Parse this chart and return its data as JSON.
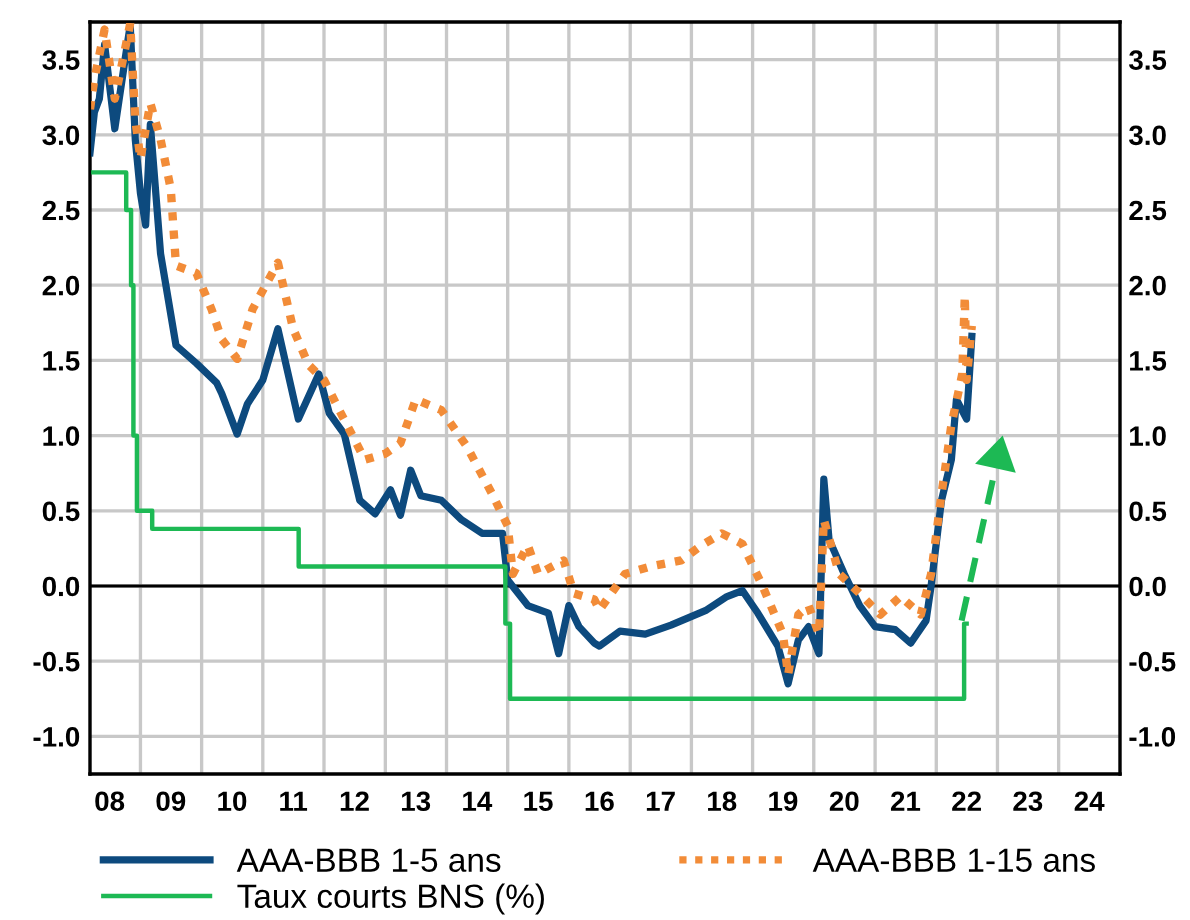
{
  "chart_data": {
    "type": "line",
    "xlim": [
      "2008-03-06",
      "2025-01-01"
    ],
    "xticks": [
      {
        "value": "2008-07-01",
        "label": "08"
      },
      {
        "value": "2009-01-01",
        "label": null
      },
      {
        "value": "2009-07-01",
        "label": "09"
      },
      {
        "value": "2010-01-01",
        "label": null
      },
      {
        "value": "2010-07-01",
        "label": "10"
      },
      {
        "value": "2011-01-01",
        "label": null
      },
      {
        "value": "2011-07-01",
        "label": "11"
      },
      {
        "value": "2012-01-01",
        "label": null
      },
      {
        "value": "2012-07-01",
        "label": "12"
      },
      {
        "value": "2013-01-01",
        "label": null
      },
      {
        "value": "2013-07-01",
        "label": "13"
      },
      {
        "value": "2014-01-01",
        "label": null
      },
      {
        "value": "2014-07-01",
        "label": "14"
      },
      {
        "value": "2015-01-01",
        "label": null
      },
      {
        "value": "2015-07-01",
        "label": "15"
      },
      {
        "value": "2016-01-01",
        "label": null
      },
      {
        "value": "2016-07-01",
        "label": "16"
      },
      {
        "value": "2017-01-01",
        "label": null
      },
      {
        "value": "2017-07-01",
        "label": "17"
      },
      {
        "value": "2018-01-01",
        "label": null
      },
      {
        "value": "2018-07-01",
        "label": "18"
      },
      {
        "value": "2019-01-01",
        "label": null
      },
      {
        "value": "2019-07-01",
        "label": "19"
      },
      {
        "value": "2020-01-01",
        "label": null
      },
      {
        "value": "2020-07-01",
        "label": "20"
      },
      {
        "value": "2021-01-01",
        "label": null
      },
      {
        "value": "2021-07-01",
        "label": "21"
      },
      {
        "value": "2022-01-01",
        "label": null
      },
      {
        "value": "2022-07-01",
        "label": "22"
      },
      {
        "value": "2023-01-01",
        "label": null
      },
      {
        "value": "2023-07-01",
        "label": "23"
      },
      {
        "value": "2024-01-01",
        "label": null
      },
      {
        "value": "2024-07-01",
        "label": "24"
      }
    ],
    "ylim": [
      -1.25,
      3.75
    ],
    "yticks": [
      {
        "value": -1.0,
        "label": "-1.0"
      },
      {
        "value": -0.5,
        "label": "-0.5"
      },
      {
        "value": 0.0,
        "label": "0.0"
      },
      {
        "value": 0.5,
        "label": "0.5"
      },
      {
        "value": 1.0,
        "label": "1.0"
      },
      {
        "value": 1.5,
        "label": "1.5"
      },
      {
        "value": 2.0,
        "label": "2.0"
      },
      {
        "value": 2.5,
        "label": "2.5"
      },
      {
        "value": 3.0,
        "label": "3.0"
      },
      {
        "value": 3.5,
        "label": "3.5"
      }
    ],
    "y2lim": [
      -1.25,
      3.75
    ],
    "y2ticks": [
      {
        "value": -1.0,
        "label": "-1.0"
      },
      {
        "value": -0.5,
        "label": "-0.5"
      },
      {
        "value": 0.0,
        "label": "0.0"
      },
      {
        "value": 0.5,
        "label": "0.5"
      },
      {
        "value": 1.0,
        "label": "1.0"
      },
      {
        "value": 1.5,
        "label": "1.5"
      },
      {
        "value": 2.0,
        "label": "2.0"
      },
      {
        "value": 2.5,
        "label": "2.5"
      },
      {
        "value": 3.0,
        "label": "3.0"
      },
      {
        "value": 3.5,
        "label": "3.5"
      }
    ],
    "grid": true,
    "legend": "bottom",
    "ref_lines": [
      {
        "axis": "y",
        "value": 0,
        "color": "#000000"
      }
    ],
    "series": [
      {
        "name": "AAA-BBB 1-5 ans",
        "color": "#0d4a7e",
        "line_style": "solid",
        "x": [
          "2008-03-06",
          "2008-04",
          "2008-05",
          "2008-06",
          "2008-08",
          "2008-10",
          "2008-11",
          "2008-12",
          "2009-01",
          "2009-02",
          "2009-03",
          "2009-05",
          "2009-08",
          "2009-12",
          "2010-04",
          "2010-05",
          "2010-08",
          "2010-10",
          "2011-01",
          "2011-04",
          "2011-08",
          "2011-12",
          "2012-02",
          "2012-05",
          "2012-08",
          "2012-11",
          "2013-02",
          "2013-04",
          "2013-06",
          "2013-08",
          "2013-12",
          "2014-04",
          "2014-08",
          "2014-12",
          "2015-01",
          "2015-05",
          "2015-09",
          "2015-11",
          "2016-01",
          "2016-03",
          "2016-06",
          "2016-07",
          "2016-11",
          "2017-04",
          "2017-09",
          "2018-04",
          "2018-08",
          "2018-11",
          "2019-02",
          "2019-06",
          "2019-08",
          "2019-10",
          "2019-12",
          "2020-02",
          "2020-03",
          "2020-04",
          "2020-07",
          "2020-10",
          "2021-01",
          "2021-05",
          "2021-08",
          "2021-11",
          "2021-12",
          "2022-02",
          "2022-04",
          "2022-05",
          "2022-07",
          "2022-08"
        ],
        "values": [
          2.88,
          3.15,
          3.24,
          3.6,
          3.04,
          3.5,
          3.73,
          2.97,
          2.61,
          2.4,
          3.07,
          2.21,
          1.6,
          1.48,
          1.35,
          1.28,
          1.01,
          1.21,
          1.37,
          1.71,
          1.11,
          1.41,
          1.15,
          1.01,
          0.57,
          0.48,
          0.64,
          0.47,
          0.77,
          0.6,
          0.57,
          0.44,
          0.35,
          0.35,
          0.04,
          -0.13,
          -0.18,
          -0.45,
          -0.13,
          -0.27,
          -0.38,
          -0.4,
          -0.3,
          -0.32,
          -0.26,
          -0.16,
          -0.07,
          -0.03,
          -0.18,
          -0.4,
          -0.65,
          -0.36,
          -0.27,
          -0.45,
          0.71,
          0.31,
          0.08,
          -0.13,
          -0.27,
          -0.29,
          -0.38,
          -0.23,
          0.0,
          0.57,
          0.84,
          1.24,
          1.11,
          1.66
        ]
      },
      {
        "name": "AAA-BBB 1-15 ans",
        "color": "#f28c38",
        "line_style": "dotted",
        "x": [
          "2008-03-06",
          "2008-04",
          "2008-06",
          "2008-08",
          "2008-10",
          "2008-11",
          "2008-12",
          "2009-01",
          "2009-03",
          "2009-05",
          "2009-07",
          "2009-08",
          "2009-12",
          "2010-03",
          "2010-05",
          "2010-08",
          "2010-11",
          "2011-04",
          "2011-07",
          "2011-10",
          "2012-01",
          "2012-04",
          "2012-09",
          "2013-01",
          "2013-04",
          "2013-07",
          "2013-12",
          "2014-05",
          "2014-10",
          "2015-01",
          "2015-02",
          "2015-05",
          "2015-07",
          "2015-12",
          "2016-02",
          "2016-06",
          "2016-07",
          "2016-12",
          "2017-05",
          "2017-11",
          "2018-03",
          "2018-07",
          "2018-11",
          "2019-03",
          "2019-07",
          "2019-08",
          "2019-10",
          "2019-12",
          "2020-02",
          "2020-03",
          "2020-06",
          "2020-10",
          "2021-02",
          "2021-06",
          "2021-10",
          "2021-12",
          "2022-02",
          "2022-04",
          "2022-06-05",
          "2022-06-20",
          "2022-07",
          "2022-08"
        ],
        "values": [
          3.17,
          3.37,
          3.7,
          3.24,
          3.57,
          3.74,
          3.1,
          2.84,
          3.21,
          2.97,
          2.64,
          2.13,
          2.08,
          1.84,
          1.64,
          1.51,
          1.84,
          2.15,
          1.71,
          1.47,
          1.37,
          1.17,
          0.84,
          0.88,
          0.95,
          1.24,
          1.17,
          0.93,
          0.61,
          0.4,
          0.08,
          0.27,
          0.08,
          0.17,
          -0.05,
          -0.09,
          -0.16,
          0.08,
          0.13,
          0.17,
          0.27,
          0.35,
          0.28,
          0.0,
          -0.32,
          -0.59,
          -0.19,
          -0.13,
          -0.32,
          0.44,
          0.08,
          -0.05,
          -0.19,
          -0.07,
          -0.19,
          0.08,
          0.61,
          1.07,
          1.41,
          1.93,
          1.37,
          1.73
        ]
      },
      {
        "name": "Taux courts BNS (%)",
        "type": "step",
        "color": "#1db954",
        "line_style": "solid",
        "x": [
          "2008-03-06",
          "2008-10-08",
          "2008-11-06",
          "2008-11-20",
          "2008-12-11",
          "2009-03-12",
          "2011-08-03",
          "2014-12-18",
          "2015-01-15",
          "2022-06-16",
          "2022-07-01"
        ],
        "values": [
          2.75,
          2.5,
          2.0,
          1.0,
          0.5,
          0.38,
          0.13,
          -0.25,
          -0.75,
          -0.25,
          -0.25
        ]
      },
      {
        "type": "line",
        "color": "#1db954",
        "line_style": "dashed",
        "x": [
          "2022-06",
          "2023-02"
        ],
        "values": [
          -0.23,
          1.0
        ]
      }
    ]
  }
}
